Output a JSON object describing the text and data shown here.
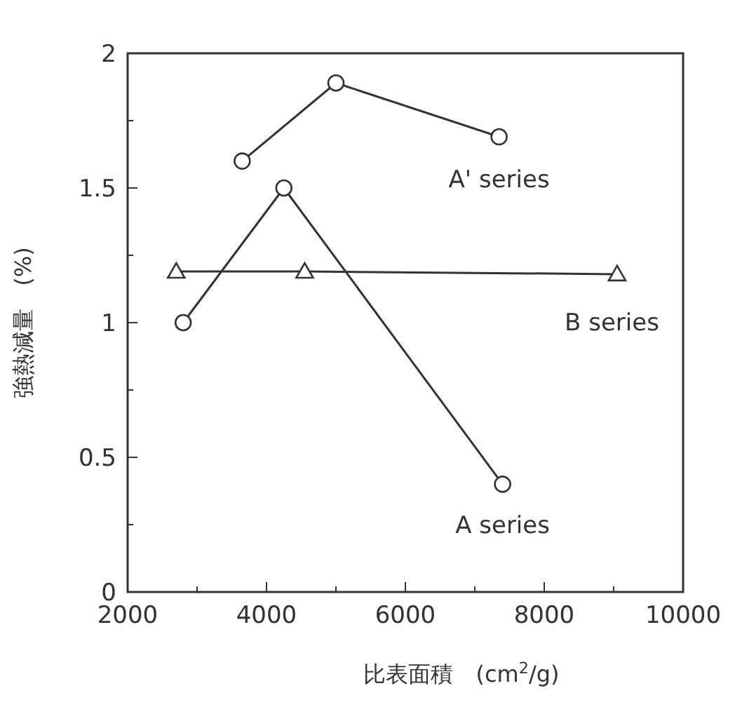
{
  "chart_data": {
    "type": "line",
    "xlabel": "比表面積　(cm$^{2}$/g)",
    "ylabel": "強熱減量　(%)",
    "xlim": [
      2000,
      10000
    ],
    "xticks": [
      2000,
      {
        "value": 3000,
        "label": null
      },
      4000,
      {
        "value": 5000,
        "label": null
      },
      6000,
      {
        "value": 7000,
        "label": null
      },
      8000,
      {
        "value": 9000,
        "label": null
      },
      10000
    ],
    "ylim": [
      0,
      2
    ],
    "yticks": [
      0,
      {
        "value": 0.25,
        "label": null
      },
      0.5,
      {
        "value": 0.75,
        "label": null
      },
      1,
      {
        "value": 1.25,
        "label": null
      },
      1.5,
      {
        "value": 1.75,
        "label": null
      },
      2
    ],
    "grid": false,
    "line_style": "solid",
    "series": [
      {
        "name": "A' series",
        "color": "#333333",
        "marker": "circle",
        "x": [
          3650,
          5000,
          7350
        ],
        "values": [
          1.6,
          1.89,
          1.69
        ]
      },
      {
        "name": "B series",
        "color": "#333333",
        "marker": "triangle",
        "x": [
          2700,
          4550,
          9050
        ],
        "values": [
          1.19,
          1.19,
          1.18
        ]
      },
      {
        "name": "A series",
        "color": "#333333",
        "marker": "circle",
        "x": [
          2800,
          4250,
          7400
        ],
        "values": [
          1.0,
          1.5,
          0.4
        ]
      }
    ]
  }
}
